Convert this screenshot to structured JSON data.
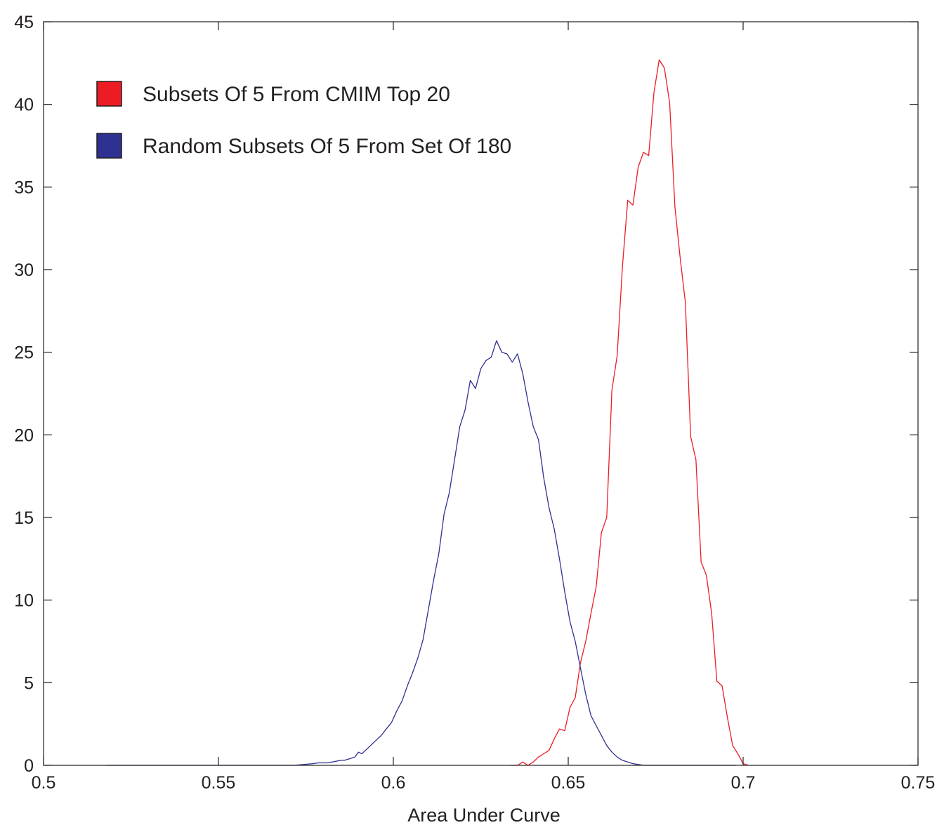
{
  "chart_data": {
    "type": "line",
    "title": "",
    "xlabel": "Area Under Curve",
    "ylabel": "",
    "xlim": [
      0.5,
      0.75
    ],
    "ylim": [
      0,
      45
    ],
    "xticks": [
      0.5,
      0.55,
      0.6,
      0.65,
      0.7,
      0.75
    ],
    "xtick_labels": [
      "0.5",
      "0.55",
      "0.6",
      "0.65",
      "0.7",
      "0.75"
    ],
    "yticks": [
      0,
      5,
      10,
      15,
      20,
      25,
      30,
      35,
      40,
      45
    ],
    "ytick_labels": [
      "0",
      "5",
      "10",
      "15",
      "20",
      "25",
      "30",
      "35",
      "40",
      "45"
    ],
    "grid": false,
    "legend_position": "top-left",
    "colors": {
      "axis": "#231f20",
      "red": "#ed1c24",
      "blue": "#2e3192"
    },
    "series": [
      {
        "name": "Subsets Of 5 From CMIM Top 20",
        "color": "#ed1c24",
        "x": [
          0.6335,
          0.6355,
          0.637,
          0.6385,
          0.64,
          0.6415,
          0.643,
          0.6445,
          0.646,
          0.6475,
          0.649,
          0.6505,
          0.652,
          0.6535,
          0.655,
          0.6565,
          0.658,
          0.6595,
          0.661,
          0.6625,
          0.664,
          0.6655,
          0.667,
          0.6685,
          0.67,
          0.6715,
          0.673,
          0.6745,
          0.676,
          0.6775,
          0.679,
          0.6805,
          0.682,
          0.6835,
          0.685,
          0.6865,
          0.688,
          0.6895,
          0.691,
          0.6925,
          0.694,
          0.6955,
          0.697,
          0.6985,
          0.7,
          0.7015
        ],
        "y": [
          0,
          0,
          0.2,
          0,
          0.2,
          0.5,
          0.7,
          0.9,
          1.6,
          2.2,
          2.1,
          3.5,
          4.1,
          6.2,
          7.5,
          9.2,
          10.8,
          14.1,
          15.0,
          22.7,
          24.8,
          30.2,
          34.2,
          33.9,
          36.2,
          37.1,
          36.9,
          40.7,
          42.7,
          42.2,
          40.1,
          33.8,
          30.7,
          28.0,
          19.9,
          18.5,
          12.3,
          11.5,
          9.2,
          5.1,
          4.8,
          2.9,
          1.2,
          0.7,
          0.1,
          0
        ]
      },
      {
        "name": "Random Subsets Of 5 From Set Of 180",
        "color": "#2e3192",
        "x": [
          0.518,
          0.53,
          0.54,
          0.55,
          0.56,
          0.565,
          0.569,
          0.5715,
          0.5745,
          0.577,
          0.5785,
          0.581,
          0.5825,
          0.585,
          0.586,
          0.5875,
          0.589,
          0.59,
          0.591,
          0.592,
          0.5935,
          0.595,
          0.5965,
          0.598,
          0.5995,
          0.601,
          0.6025,
          0.604,
          0.6055,
          0.607,
          0.6085,
          0.61,
          0.6115,
          0.613,
          0.6145,
          0.616,
          0.6175,
          0.619,
          0.6205,
          0.622,
          0.6235,
          0.625,
          0.6265,
          0.628,
          0.6295,
          0.631,
          0.6325,
          0.634,
          0.6355,
          0.637,
          0.6385,
          0.64,
          0.6415,
          0.643,
          0.6445,
          0.646,
          0.6475,
          0.649,
          0.6505,
          0.652,
          0.6535,
          0.655,
          0.6565,
          0.658,
          0.6595,
          0.661,
          0.6625,
          0.664,
          0.6655,
          0.667,
          0.6685,
          0.67,
          0.6715,
          0.673,
          0.6745,
          0.676,
          0.6775,
          0.679,
          0.6805,
          0.682,
          0.6835,
          0.685,
          0.6865,
          0.689,
          0.6915,
          0.694,
          0.698
        ],
        "y": [
          0,
          0,
          0,
          0,
          0,
          0,
          0,
          0,
          0.05,
          0.1,
          0.15,
          0.15,
          0.2,
          0.3,
          0.3,
          0.4,
          0.5,
          0.8,
          0.7,
          0.9,
          1.2,
          1.5,
          1.8,
          2.2,
          2.6,
          3.3,
          3.9,
          4.8,
          5.6,
          6.5,
          7.6,
          9.4,
          11.2,
          12.8,
          15.2,
          16.5,
          18.5,
          20.5,
          21.5,
          23.3,
          22.8,
          24.0,
          24.5,
          24.7,
          25.7,
          25.0,
          24.9,
          24.4,
          24.9,
          23.7,
          22.0,
          20.5,
          19.7,
          17.4,
          15.6,
          14.3,
          12.5,
          10.5,
          8.7,
          7.5,
          5.9,
          4.3,
          3.0,
          2.4,
          1.8,
          1.2,
          0.8,
          0.5,
          0.3,
          0.2,
          0.1,
          0.05,
          0,
          0,
          0,
          0,
          0,
          0,
          0,
          0,
          0,
          0,
          0,
          0,
          0,
          0,
          0
        ]
      }
    ]
  }
}
